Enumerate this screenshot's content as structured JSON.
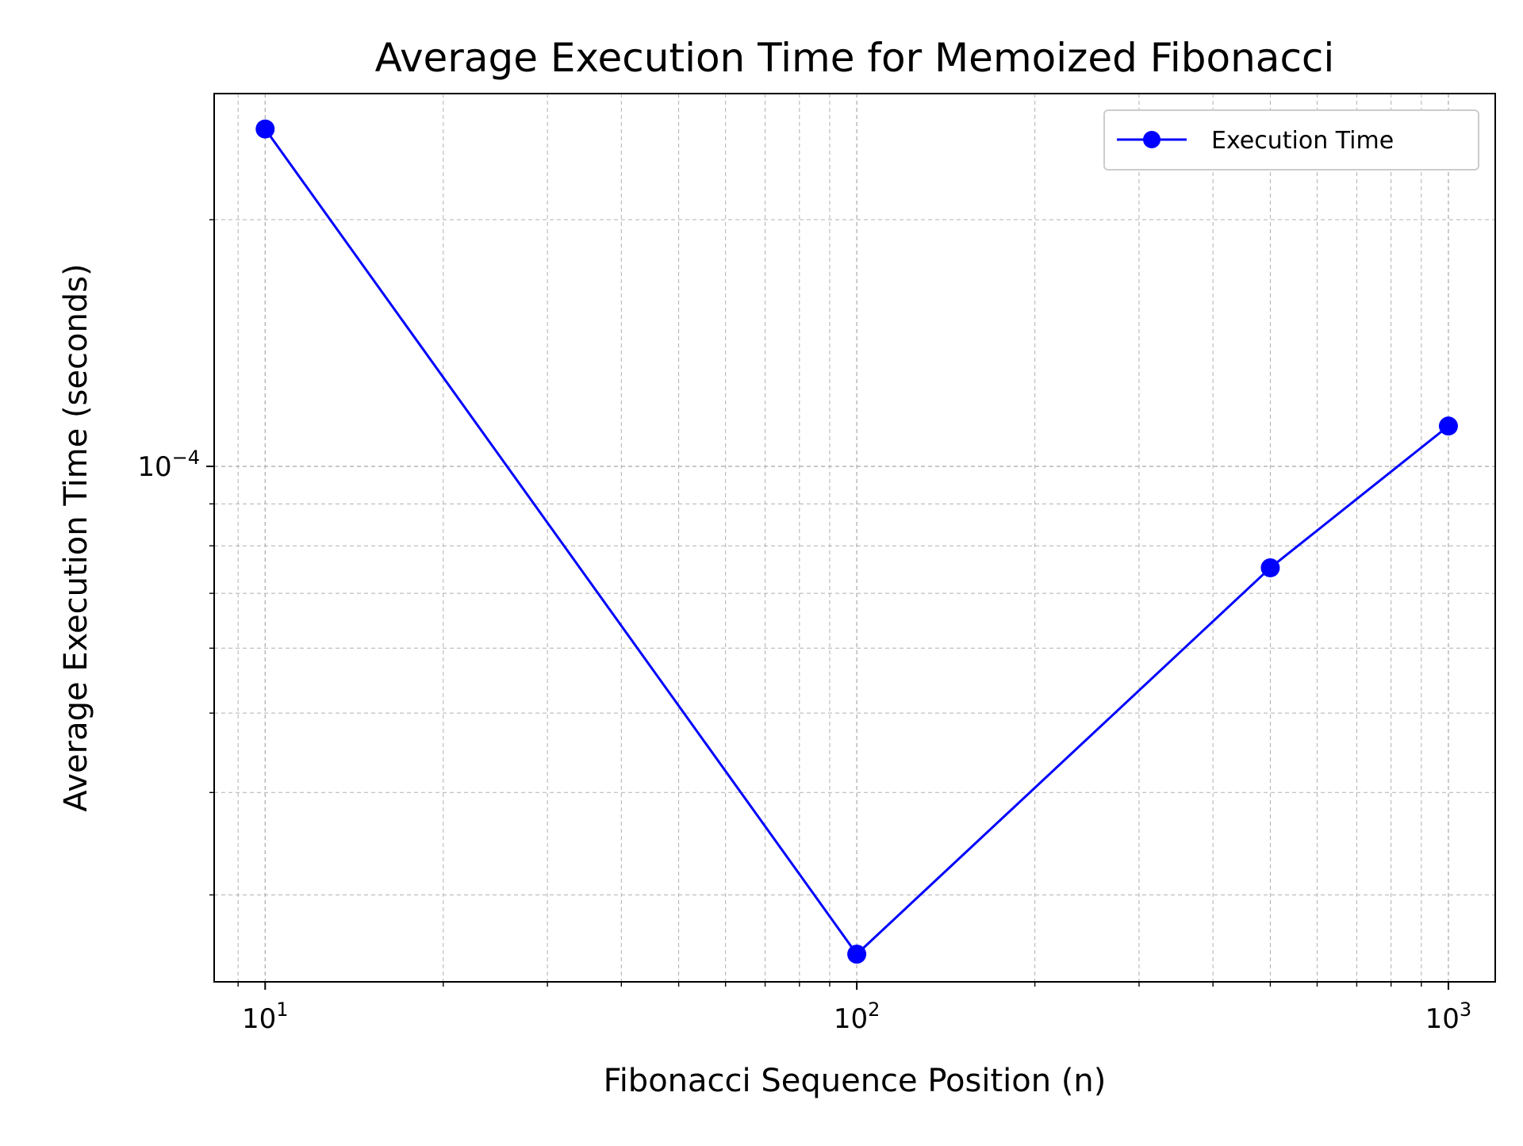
{
  "chart_data": {
    "type": "line",
    "title": "Average Execution Time for Memoized Fibonacci",
    "xlabel": "Fibonacci Sequence Position (n)",
    "ylabel": "Average Execution Time (seconds)",
    "x_scale": "log",
    "y_scale": "log",
    "xlim": [
      8.2,
      1200
    ],
    "ylim": [
      2.35e-05,
      0.000285
    ],
    "grid": true,
    "grid_style": "dashed",
    "legend_position": "top-right",
    "x_ticks": [
      {
        "value": 10,
        "base": "10",
        "exp": "1"
      },
      {
        "value": 100,
        "base": "10",
        "exp": "2"
      },
      {
        "value": 1000,
        "base": "10",
        "exp": "3"
      }
    ],
    "y_ticks": [
      {
        "value": 0.0001,
        "base": "10",
        "exp": "−4"
      }
    ],
    "series": [
      {
        "name": "Execution Time",
        "color": "#0000ff",
        "marker": "circle",
        "x": [
          10,
          100,
          500,
          1000
        ],
        "y": [
          0.000258,
          2.54e-05,
          7.52e-05,
          0.000112
        ]
      }
    ]
  }
}
